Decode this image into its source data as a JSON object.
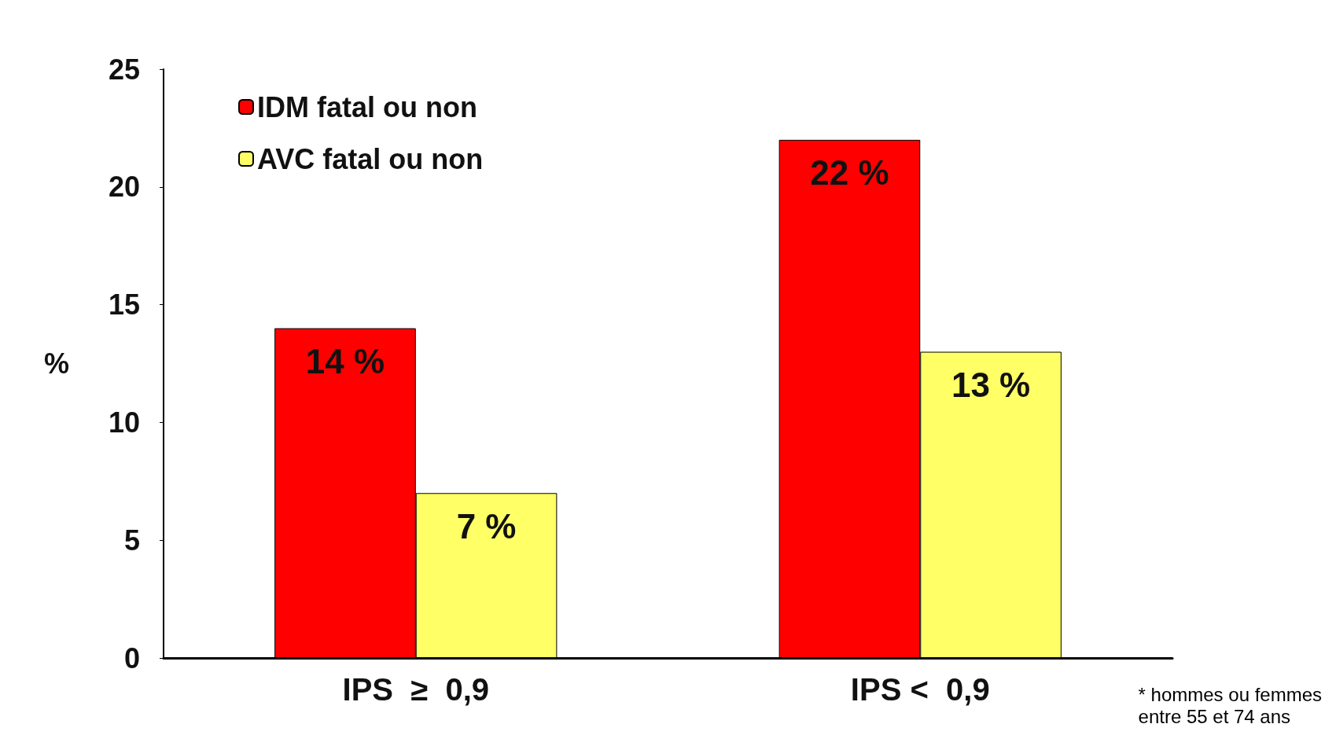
{
  "chart_data": {
    "type": "bar",
    "ylabel": "%",
    "categories": [
      "IPS  ≥  0,9",
      "IPS <  0,9"
    ],
    "series": [
      {
        "name": "IDM fatal ou non",
        "color": "#ff0000",
        "values": [
          14,
          22
        ],
        "value_labels": [
          "14 %",
          "22 %"
        ]
      },
      {
        "name": "AVC fatal ou non",
        "color": "#ffff66",
        "values": [
          7,
          13
        ],
        "value_labels": [
          "7 %",
          "13 %"
        ]
      }
    ],
    "ylim": [
      0,
      25
    ],
    "yticks": [
      0,
      5,
      10,
      15,
      20,
      25
    ],
    "grid": false,
    "legend": "top left",
    "annotations": [
      "* hommes ou femmes\nentre 55 et 74 ans"
    ]
  }
}
